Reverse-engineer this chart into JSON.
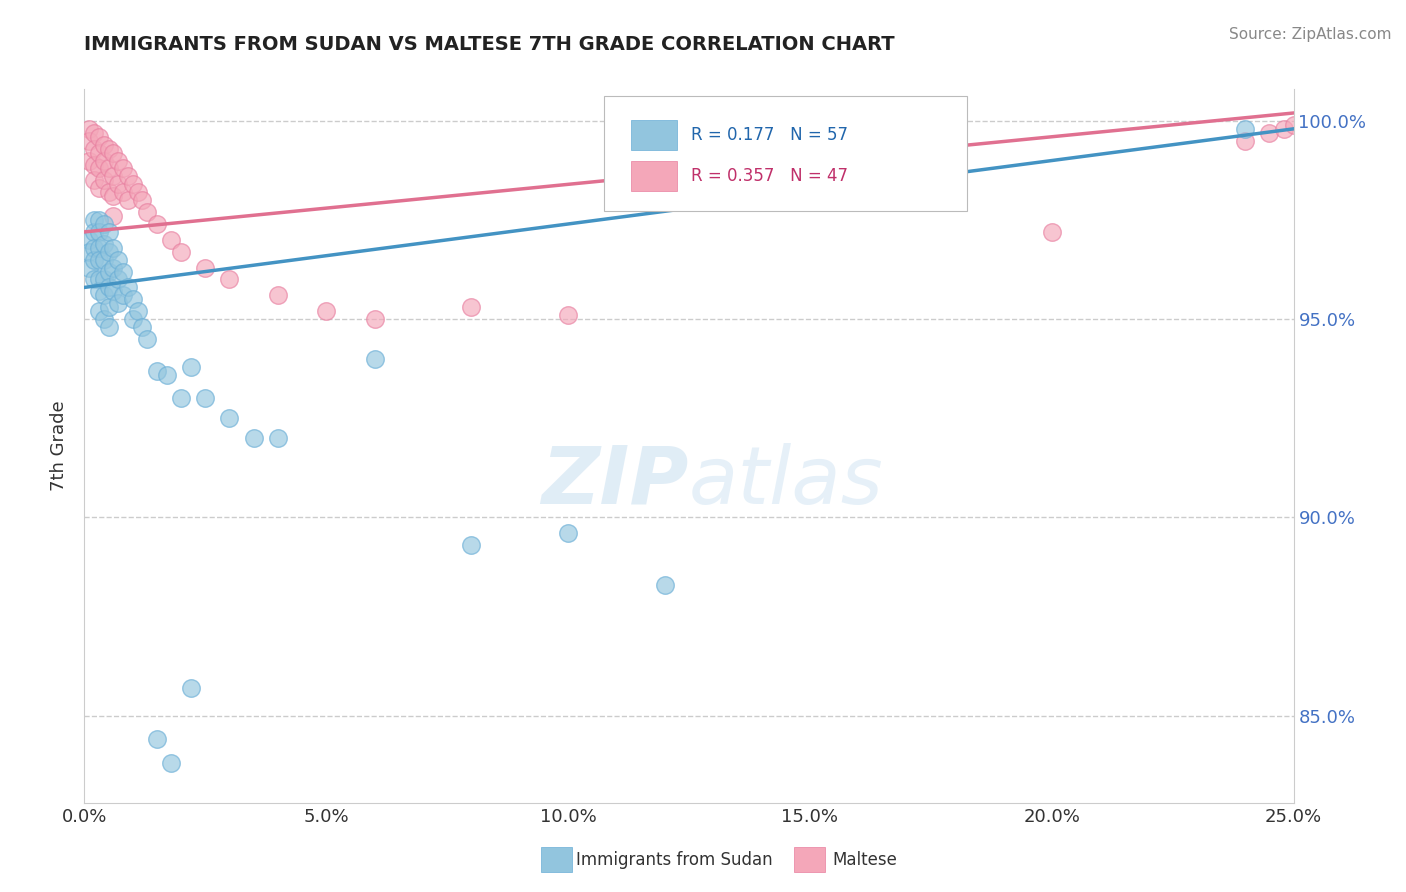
{
  "title": "IMMIGRANTS FROM SUDAN VS MALTESE 7TH GRADE CORRELATION CHART",
  "source_text": "Source: ZipAtlas.com",
  "ylabel": "7th Grade",
  "xlim": [
    0.0,
    0.25
  ],
  "ylim": [
    0.828,
    1.008
  ],
  "xtick_labels": [
    "0.0%",
    "5.0%",
    "10.0%",
    "15.0%",
    "20.0%",
    "25.0%"
  ],
  "xtick_values": [
    0.0,
    0.05,
    0.1,
    0.15,
    0.2,
    0.25
  ],
  "ytick_labels": [
    "85.0%",
    "90.0%",
    "95.0%",
    "100.0%"
  ],
  "ytick_values": [
    0.85,
    0.9,
    0.95,
    1.0
  ],
  "blue_color": "#92c5de",
  "pink_color": "#f4a7b9",
  "blue_edge_color": "#6aaed6",
  "pink_edge_color": "#e87fa0",
  "blue_line_color": "#4393c3",
  "pink_line_color": "#e07090",
  "legend_label_blue": "Immigrants from Sudan",
  "legend_label_pink": "Maltese",
  "watermark_zip": "ZIP",
  "watermark_atlas": "atlas",
  "blue_scatter_x": [
    0.001,
    0.001,
    0.001,
    0.002,
    0.002,
    0.002,
    0.002,
    0.002,
    0.003,
    0.003,
    0.003,
    0.003,
    0.003,
    0.003,
    0.003,
    0.004,
    0.004,
    0.004,
    0.004,
    0.004,
    0.004,
    0.005,
    0.005,
    0.005,
    0.005,
    0.005,
    0.005,
    0.006,
    0.006,
    0.006,
    0.007,
    0.007,
    0.007,
    0.008,
    0.008,
    0.009,
    0.01,
    0.01,
    0.011,
    0.012,
    0.013,
    0.015,
    0.017,
    0.02,
    0.022,
    0.025,
    0.03,
    0.035,
    0.04,
    0.06,
    0.08,
    0.1,
    0.12,
    0.015,
    0.018,
    0.022,
    0.24
  ],
  "blue_scatter_y": [
    0.97,
    0.967,
    0.963,
    0.975,
    0.972,
    0.968,
    0.965,
    0.96,
    0.975,
    0.972,
    0.968,
    0.965,
    0.96,
    0.957,
    0.952,
    0.974,
    0.969,
    0.965,
    0.96,
    0.956,
    0.95,
    0.972,
    0.967,
    0.962,
    0.958,
    0.953,
    0.948,
    0.968,
    0.963,
    0.957,
    0.965,
    0.96,
    0.954,
    0.962,
    0.956,
    0.958,
    0.955,
    0.95,
    0.952,
    0.948,
    0.945,
    0.937,
    0.936,
    0.93,
    0.938,
    0.93,
    0.925,
    0.92,
    0.92,
    0.94,
    0.893,
    0.896,
    0.883,
    0.844,
    0.838,
    0.857,
    0.998
  ],
  "pink_scatter_x": [
    0.001,
    0.001,
    0.001,
    0.002,
    0.002,
    0.002,
    0.002,
    0.003,
    0.003,
    0.003,
    0.003,
    0.004,
    0.004,
    0.004,
    0.005,
    0.005,
    0.005,
    0.006,
    0.006,
    0.006,
    0.006,
    0.007,
    0.007,
    0.008,
    0.008,
    0.009,
    0.009,
    0.01,
    0.011,
    0.012,
    0.013,
    0.015,
    0.018,
    0.02,
    0.025,
    0.03,
    0.04,
    0.05,
    0.06,
    0.08,
    0.1,
    0.2,
    0.24,
    0.245,
    0.248,
    0.25,
    0.252
  ],
  "pink_scatter_y": [
    0.998,
    0.995,
    0.99,
    0.997,
    0.993,
    0.989,
    0.985,
    0.996,
    0.992,
    0.988,
    0.983,
    0.994,
    0.99,
    0.985,
    0.993,
    0.988,
    0.982,
    0.992,
    0.986,
    0.981,
    0.976,
    0.99,
    0.984,
    0.988,
    0.982,
    0.986,
    0.98,
    0.984,
    0.982,
    0.98,
    0.977,
    0.974,
    0.97,
    0.967,
    0.963,
    0.96,
    0.956,
    0.952,
    0.95,
    0.953,
    0.951,
    0.972,
    0.995,
    0.997,
    0.998,
    0.999,
    1.0
  ],
  "background_color": "#ffffff",
  "grid_color": "#cccccc",
  "blue_line_x": [
    0.0,
    0.25
  ],
  "blue_line_y": [
    0.958,
    0.998
  ],
  "pink_line_x": [
    0.0,
    0.25
  ],
  "pink_line_y": [
    0.972,
    1.002
  ]
}
